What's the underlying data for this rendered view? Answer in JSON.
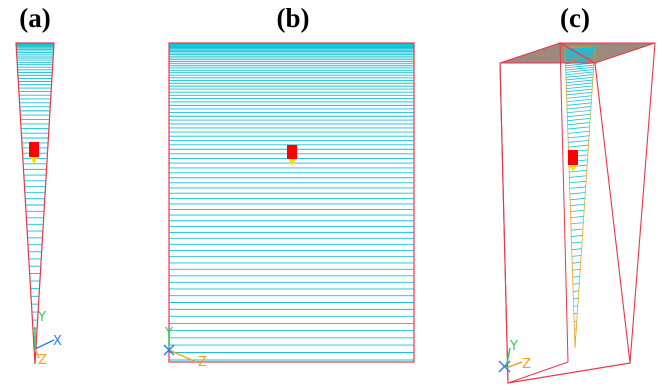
{
  "labels": {
    "a": "(a)",
    "b": "(b)",
    "c": "(c)"
  },
  "axes": {
    "x": "X",
    "y": "Y",
    "z": "Z"
  },
  "colors": {
    "outline": "#e8364a",
    "cyan": "#12c2d8",
    "red_block": "#ff0000",
    "yellow_tip": "#f2e600",
    "axis_x": "#2f7ff0",
    "axis_y": "#37c95a",
    "axis_z": "#f4a21a",
    "top_face": "#9c8a7f"
  },
  "icons": {
    "red_block": "red-block-icon",
    "axis_triad": "axis-triad-icon"
  }
}
